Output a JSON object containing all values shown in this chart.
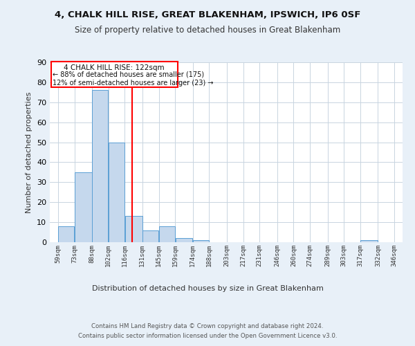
{
  "title1": "4, CHALK HILL RISE, GREAT BLAKENHAM, IPSWICH, IP6 0SF",
  "title2": "Size of property relative to detached houses in Great Blakenham",
  "xlabel": "Distribution of detached houses by size in Great Blakenham",
  "ylabel": "Number of detached properties",
  "bar_color": "#c5d8ed",
  "bar_edge_color": "#5a9fd4",
  "reference_line_x": 122,
  "reference_line_color": "red",
  "annotation_line1": "4 CHALK HILL RISE: 122sqm",
  "annotation_line2": "← 88% of detached houses are smaller (175)",
  "annotation_line3": "12% of semi-detached houses are larger (23) →",
  "annotation_box_color": "red",
  "bin_edges": [
    59,
    73,
    88,
    102,
    116,
    131,
    145,
    159,
    174,
    188,
    203,
    217,
    231,
    246,
    260,
    274,
    289,
    303,
    317,
    332,
    346
  ],
  "bin_counts": [
    8,
    35,
    76,
    50,
    13,
    6,
    8,
    2,
    1,
    0,
    0,
    0,
    0,
    0,
    0,
    0,
    0,
    0,
    1,
    0
  ],
  "tick_labels": [
    "59sqm",
    "73sqm",
    "88sqm",
    "102sqm",
    "116sqm",
    "131sqm",
    "145sqm",
    "159sqm",
    "174sqm",
    "188sqm",
    "203sqm",
    "217sqm",
    "231sqm",
    "246sqm",
    "260sqm",
    "274sqm",
    "289sqm",
    "303sqm",
    "317sqm",
    "332sqm",
    "346sqm"
  ],
  "ylim": [
    0,
    90
  ],
  "footer_line1": "Contains HM Land Registry data © Crown copyright and database right 2024.",
  "footer_line2": "Contains public sector information licensed under the Open Government Licence v3.0.",
  "background_color": "#e8f0f8",
  "plot_background_color": "#ffffff",
  "grid_color": "#c8d4e0"
}
